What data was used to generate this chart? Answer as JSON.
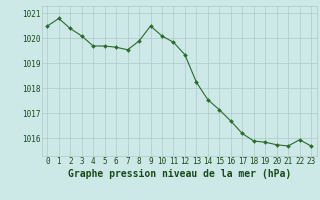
{
  "x": [
    0,
    1,
    2,
    3,
    4,
    5,
    6,
    7,
    8,
    9,
    10,
    11,
    12,
    13,
    14,
    15,
    16,
    17,
    18,
    19,
    20,
    21,
    22,
    23
  ],
  "y": [
    1020.5,
    1020.8,
    1020.4,
    1020.1,
    1019.7,
    1019.7,
    1019.65,
    1019.55,
    1019.9,
    1020.5,
    1020.1,
    1019.85,
    1019.35,
    1018.25,
    1017.55,
    1017.15,
    1016.7,
    1016.2,
    1015.9,
    1015.85,
    1015.75,
    1015.7,
    1015.95,
    1015.7
  ],
  "ylim": [
    1015.3,
    1021.3
  ],
  "yticks": [
    1016,
    1017,
    1018,
    1019,
    1020,
    1021
  ],
  "xticks": [
    0,
    1,
    2,
    3,
    4,
    5,
    6,
    7,
    8,
    9,
    10,
    11,
    12,
    13,
    14,
    15,
    16,
    17,
    18,
    19,
    20,
    21,
    22,
    23
  ],
  "xlabel": "Graphe pression niveau de la mer (hPa)",
  "line_color": "#2d6a2d",
  "marker_color": "#2d6a2d",
  "bg_color": "#cce9e7",
  "grid_color": "#b0c8c8",
  "text_color": "#1a4a1a",
  "tick_fontsize": 5.5,
  "xlabel_fontsize": 7.0
}
